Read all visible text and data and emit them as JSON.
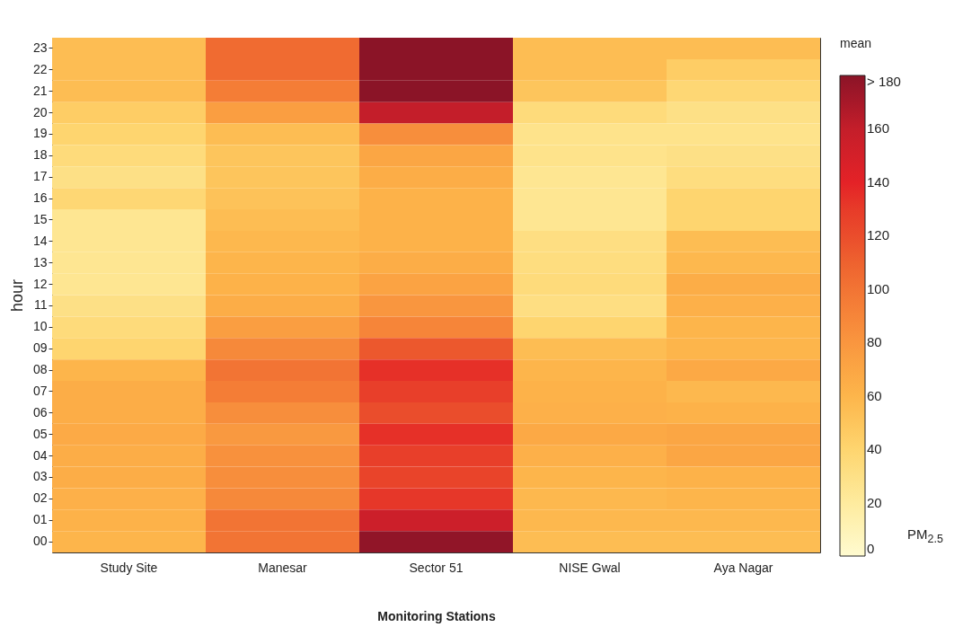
{
  "chart_data": {
    "type": "heatmap",
    "xlabel": "Monitoring Stations",
    "ylabel": "hour",
    "legend_title": "mean",
    "clabel": "PM$_{2.5}$",
    "categories": [
      "Study Site",
      "Manesar",
      "Sector 51",
      "NISE Gwal",
      "Aya Nagar"
    ],
    "y_categories": [
      "23",
      "22",
      "21",
      "20",
      "19",
      "18",
      "17",
      "16",
      "15",
      "14",
      "13",
      "12",
      "11",
      "10",
      "09",
      "08",
      "07",
      "06",
      "05",
      "04",
      "03",
      "02",
      "01",
      "00"
    ],
    "cells": [
      [
        55,
        105,
        180,
        55,
        55
      ],
      [
        55,
        105,
        180,
        55,
        45
      ],
      [
        55,
        95,
        180,
        50,
        38
      ],
      [
        45,
        75,
        160,
        35,
        30
      ],
      [
        40,
        55,
        85,
        28,
        28
      ],
      [
        35,
        50,
        70,
        28,
        30
      ],
      [
        30,
        50,
        65,
        25,
        33
      ],
      [
        38,
        52,
        62,
        25,
        40
      ],
      [
        25,
        55,
        62,
        25,
        40
      ],
      [
        25,
        58,
        62,
        32,
        55
      ],
      [
        25,
        60,
        65,
        33,
        58
      ],
      [
        25,
        62,
        72,
        35,
        65
      ],
      [
        30,
        65,
        80,
        32,
        63
      ],
      [
        35,
        75,
        90,
        40,
        60
      ],
      [
        40,
        88,
        115,
        55,
        60
      ],
      [
        60,
        100,
        135,
        60,
        68
      ],
      [
        65,
        95,
        128,
        62,
        58
      ],
      [
        65,
        85,
        120,
        63,
        62
      ],
      [
        67,
        78,
        135,
        68,
        70
      ],
      [
        65,
        83,
        128,
        63,
        70
      ],
      [
        65,
        85,
        125,
        60,
        62
      ],
      [
        63,
        88,
        132,
        58,
        60
      ],
      [
        62,
        100,
        155,
        58,
        58
      ],
      [
        60,
        100,
        178,
        55,
        55
      ]
    ],
    "clim": [
      0,
      180
    ],
    "cticks": [
      0,
      20,
      40,
      60,
      80,
      100,
      120,
      140,
      160,
      {
        "value": 180,
        "label": "> 180"
      }
    ]
  }
}
